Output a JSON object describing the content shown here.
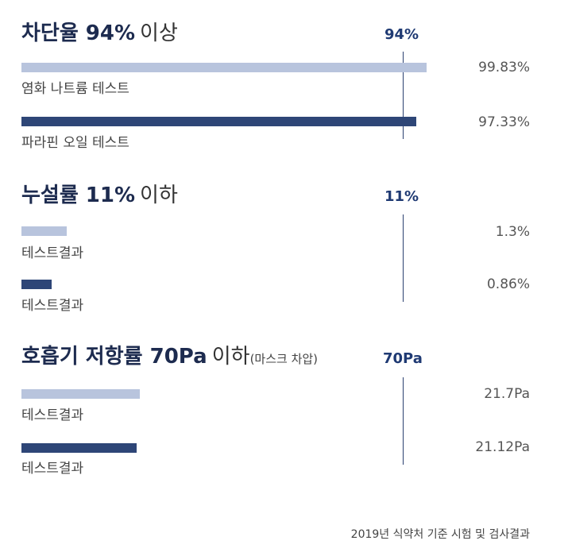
{
  "colors": {
    "light_bar": "#b8c4dd",
    "dark_bar": "#2e4677",
    "threshold": "#1f3a73"
  },
  "chart_data": [
    {
      "type": "bar",
      "orientation": "horizontal",
      "title_bold": "차단율 94%",
      "title_light": "이상",
      "title_small": "",
      "threshold_label": "94%",
      "threshold": 94,
      "xlim": [
        0,
        100
      ],
      "categories": [
        "염화 나트륨 테스트",
        "파라핀 오일 테스트"
      ],
      "values": [
        99.83,
        97.33
      ],
      "value_labels": [
        "99.83%",
        "97.33%"
      ]
    },
    {
      "type": "bar",
      "orientation": "horizontal",
      "title_bold": "누설률 11%",
      "title_light": "이하",
      "title_small": "",
      "threshold_label": "11%",
      "threshold": 11,
      "xlim": [
        0,
        11
      ],
      "categories": [
        "테스트결과",
        "테스트결과"
      ],
      "values": [
        1.3,
        0.86
      ],
      "value_labels": [
        "1.3%",
        "0.86%"
      ]
    },
    {
      "type": "bar",
      "orientation": "horizontal",
      "title_bold": "호흡기 저항률 70Pa",
      "title_light": "이하",
      "title_small": "(마스크 차압)",
      "threshold_label": "70Pa",
      "threshold": 70,
      "xlim": [
        0,
        70
      ],
      "categories": [
        "테스트결과",
        "테스트결과"
      ],
      "values": [
        21.7,
        21.12
      ],
      "value_labels": [
        "21.7Pa",
        "21.12Pa"
      ]
    }
  ],
  "footnote": "2019년 식약처 기준 시험 및 검사결과"
}
